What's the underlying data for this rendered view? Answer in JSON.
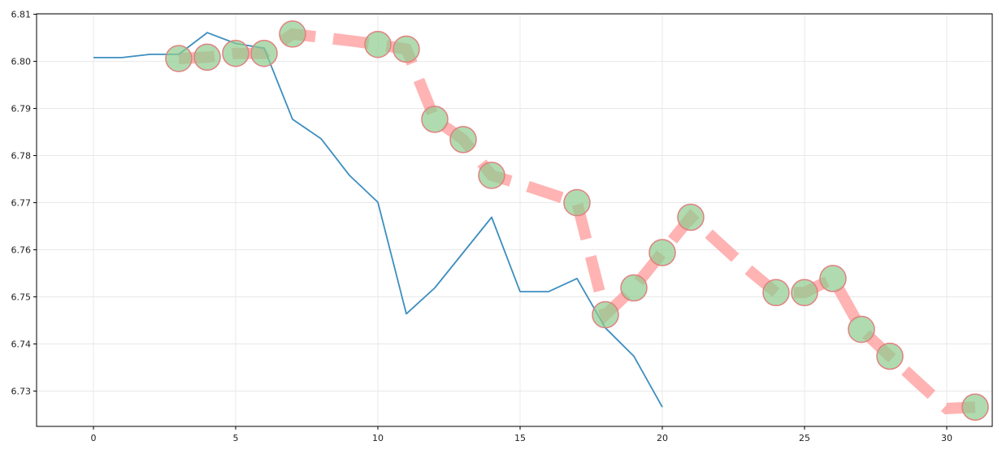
{
  "chart_data": {
    "type": "line",
    "title": "",
    "xlabel": "",
    "ylabel": "",
    "xlim": [
      -2.0,
      31.6
    ],
    "ylim": [
      6.7225,
      6.8101
    ],
    "x_ticks": [
      0,
      5,
      10,
      15,
      20,
      25,
      30
    ],
    "x_tick_labels": [
      "0",
      "5",
      "10",
      "15",
      "20",
      "25",
      "30"
    ],
    "y_ticks": [
      6.73,
      6.74,
      6.75,
      6.76,
      6.77,
      6.78,
      6.79,
      6.8,
      6.81
    ],
    "y_tick_labels": [
      "6.73",
      "6.74",
      "6.75",
      "6.76",
      "6.77",
      "6.78",
      "6.79",
      "6.80",
      "6.81"
    ],
    "grid": true,
    "series": [
      {
        "style": "line",
        "color": "#3d8ebf",
        "x": [
          0,
          1,
          2,
          3,
          4,
          5,
          6,
          7,
          8,
          9,
          10,
          11,
          12,
          13,
          14,
          15,
          16,
          17,
          18,
          19,
          20
        ],
        "y": [
          6.8008,
          6.8008,
          6.8015,
          6.8015,
          6.8061,
          6.8038,
          6.8028,
          6.7877,
          6.7836,
          6.7758,
          6.7701,
          6.7464,
          6.7519,
          6.7594,
          6.7669,
          6.7511,
          6.7511,
          6.7539,
          6.7434,
          6.7374,
          6.7266
        ]
      },
      {
        "style": "dashed-thick",
        "color": "#ff9999",
        "x": [
          3,
          4,
          5,
          6,
          7,
          8,
          9,
          10,
          11,
          12,
          13,
          14,
          15,
          16,
          17,
          18,
          19,
          20,
          21,
          22,
          23,
          24,
          25,
          26,
          27,
          28,
          29,
          30,
          31
        ],
        "y": [
          6.8006,
          6.8009,
          6.8017,
          6.8017,
          6.8058,
          6.8051,
          6.8044,
          6.8036,
          6.8026,
          6.7877,
          6.7834,
          6.7758,
          6.774,
          6.772,
          6.77,
          6.7462,
          6.7519,
          6.7594,
          6.7669,
          6.7614,
          6.7559,
          6.7509,
          6.7509,
          6.7539,
          6.7431,
          6.7374,
          6.7318,
          6.7263,
          6.7266
        ]
      },
      {
        "style": "markers",
        "marker_fill": "#8fcc8f",
        "marker_edge": "#e08080",
        "x": [
          3,
          4,
          5,
          6,
          7,
          10,
          11,
          12,
          13,
          14,
          17,
          18,
          19,
          20,
          21,
          24,
          25,
          26,
          27,
          28,
          31
        ],
        "y": [
          6.8006,
          6.8009,
          6.8017,
          6.8017,
          6.8058,
          6.8036,
          6.8026,
          6.7877,
          6.7834,
          6.7758,
          6.77,
          6.7462,
          6.7519,
          6.7594,
          6.7669,
          6.7509,
          6.7509,
          6.7539,
          6.7431,
          6.7374,
          6.7266
        ]
      }
    ]
  }
}
